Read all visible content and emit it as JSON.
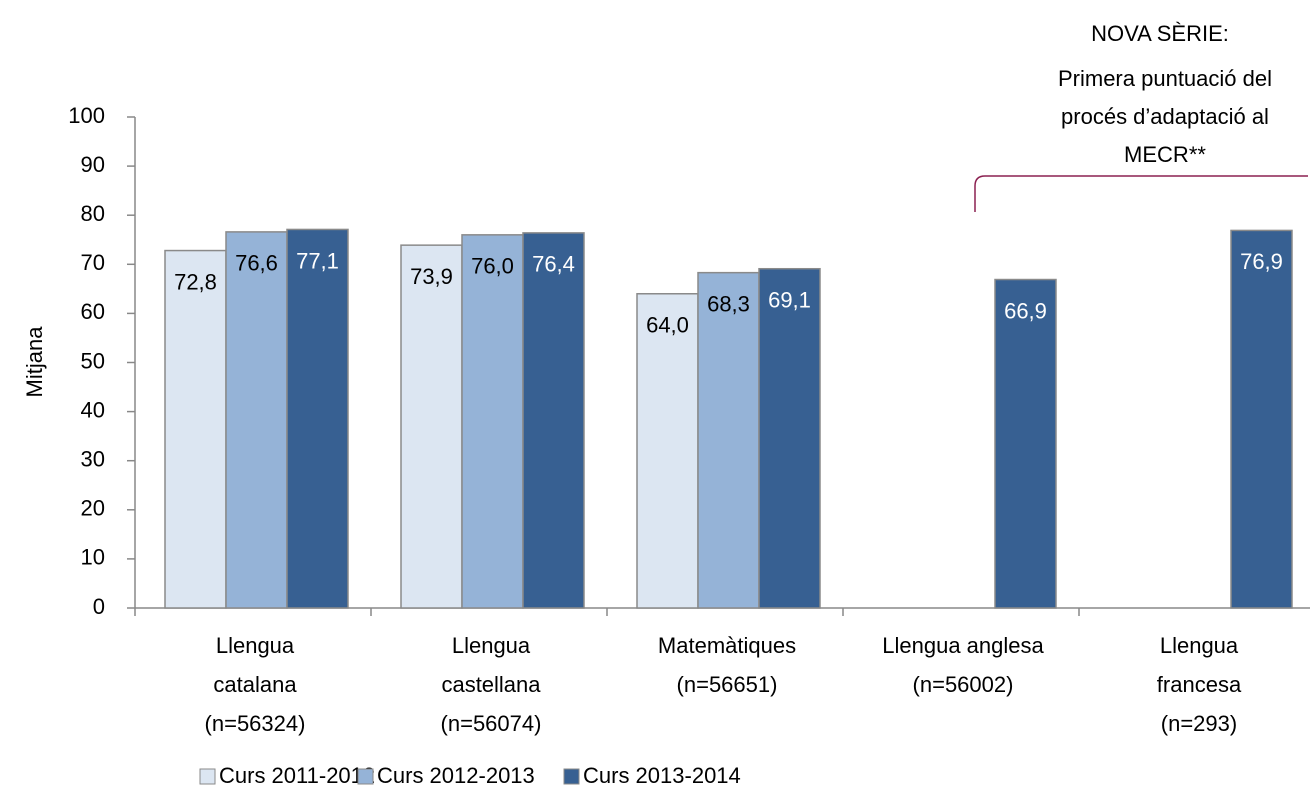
{
  "chart_data": {
    "type": "bar",
    "y_label": "Mitjana",
    "annotations": [
      "NOVA SÈRIE:",
      "Primera puntuació del",
      "procés d’adaptació al",
      "MECR**"
    ],
    "categories": [
      [
        "Llengua",
        "catalana",
        "(n=56324)"
      ],
      [
        "Llengua",
        "castellana",
        "(n=56074)"
      ],
      [
        "Matemàtiques",
        "(n=56651)"
      ],
      [
        "Llengua anglesa",
        "(n=56002)"
      ],
      [
        "Llengua",
        "francesa",
        "(n=293)"
      ]
    ],
    "series": [
      {
        "name": "Curs 2011-2012",
        "color": "#dce6f2",
        "label_color": "#000000",
        "values": [
          72.8,
          73.9,
          64.0,
          null,
          null
        ],
        "value_labels": [
          "72,8",
          "73,9",
          "64,0",
          null,
          null
        ]
      },
      {
        "name": "Curs 2012-2013",
        "color": "#95b3d7",
        "label_color": "#000000",
        "values": [
          76.6,
          76.0,
          68.3,
          null,
          null
        ],
        "value_labels": [
          "76,6",
          "76,0",
          "68,3",
          null,
          null
        ]
      },
      {
        "name": "Curs 2013-2014",
        "color": "#376092",
        "label_color": "#ffffff",
        "values": [
          77.1,
          76.4,
          69.1,
          66.9,
          76.9
        ],
        "value_labels": [
          "77,1",
          "76,4",
          "69,1",
          "66,9",
          "76,9"
        ]
      }
    ],
    "ylim": [
      0,
      100
    ],
    "yticks": [
      0,
      10,
      20,
      30,
      40,
      50,
      60,
      70,
      80,
      90,
      100
    ],
    "grid": false
  }
}
